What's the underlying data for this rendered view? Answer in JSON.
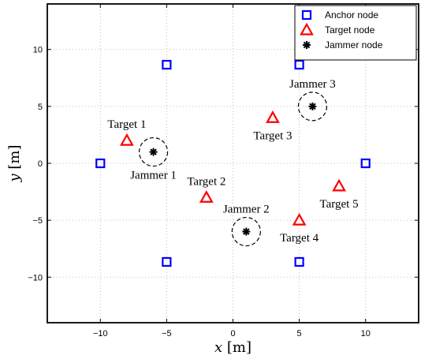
{
  "chart_data": {
    "type": "scatter",
    "xlabel": "x [m]",
    "ylabel": "y [m]",
    "xlim": [
      -14,
      14
    ],
    "ylim": [
      -14,
      14
    ],
    "xticks": [
      -10,
      -5,
      0,
      5,
      10
    ],
    "yticks": [
      -10,
      -5,
      0,
      5,
      10
    ],
    "grid": true,
    "legend_position": "top-right",
    "series": [
      {
        "name": "Anchor node",
        "marker": "square",
        "color": "#0000ff",
        "points": [
          [
            -5,
            8.66
          ],
          [
            5,
            8.66
          ],
          [
            -10,
            0
          ],
          [
            10,
            0
          ],
          [
            -5,
            -8.66
          ],
          [
            5,
            -8.66
          ]
        ]
      },
      {
        "name": "Target node",
        "marker": "triangle",
        "color": "#ff0000",
        "points": [
          [
            -8,
            2
          ],
          [
            -2,
            -3
          ],
          [
            3,
            4
          ],
          [
            5,
            -5
          ],
          [
            8,
            -2
          ]
        ]
      },
      {
        "name": "Jammer node",
        "marker": "asterisk",
        "color": "#000000",
        "points": [
          [
            -6,
            1
          ],
          [
            1,
            -6
          ],
          [
            6,
            5
          ]
        ]
      }
    ],
    "annotations": [
      {
        "text": "Target 1",
        "x": -8,
        "y": 2,
        "anchor": "above"
      },
      {
        "text": "Target 2",
        "x": -2,
        "y": -3,
        "anchor": "above"
      },
      {
        "text": "Target 3",
        "x": 3,
        "y": 4,
        "anchor": "below"
      },
      {
        "text": "Target 4",
        "x": 5,
        "y": -5,
        "anchor": "below"
      },
      {
        "text": "Target 5",
        "x": 8,
        "y": -2,
        "anchor": "below"
      },
      {
        "text": "Jammer 1",
        "x": -6,
        "y": 1,
        "anchor": "below"
      },
      {
        "text": "Jammer 2",
        "x": 1,
        "y": -6,
        "anchor": "above"
      },
      {
        "text": "Jammer 3",
        "x": 6,
        "y": 5,
        "anchor": "above"
      }
    ]
  }
}
